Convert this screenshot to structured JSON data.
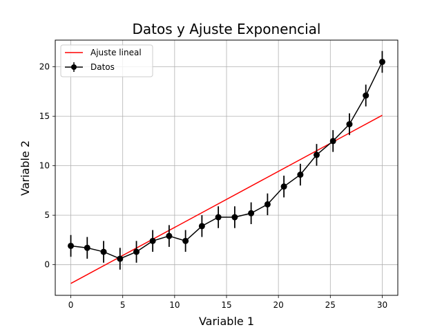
{
  "chart_data": {
    "type": "line",
    "title": "Datos y Ajuste Exponencial",
    "xlabel": "Variable 1",
    "ylabel": "Variable 2",
    "xlim": [
      -1.5,
      31.5
    ],
    "ylim": [
      -3.1,
      22.7
    ],
    "xticks": [
      0,
      5,
      10,
      15,
      20,
      25,
      30
    ],
    "yticks": [
      0,
      5,
      10,
      15,
      20
    ],
    "grid": true,
    "legend_position": "upper-left",
    "series": [
      {
        "name": "Datos",
        "kind": "errorbar-line",
        "color": "#000000",
        "marker": "circle",
        "x": [
          0,
          1.58,
          3.16,
          4.74,
          6.32,
          7.89,
          9.47,
          11.05,
          12.63,
          14.21,
          15.79,
          17.37,
          18.95,
          20.53,
          22.11,
          23.68,
          25.26,
          26.84,
          28.42,
          30
        ],
        "y": [
          1.9,
          1.7,
          1.3,
          0.6,
          1.3,
          2.4,
          2.9,
          2.4,
          3.9,
          4.8,
          4.8,
          5.2,
          6.1,
          7.9,
          9.1,
          11.1,
          12.5,
          14.2,
          17.1,
          20.5
        ],
        "yerr": 1.1
      },
      {
        "name": "Ajuste lineal",
        "kind": "line",
        "color": "#ff0000",
        "x": [
          0,
          30
        ],
        "y": [
          -1.9,
          15.1
        ]
      }
    ]
  }
}
